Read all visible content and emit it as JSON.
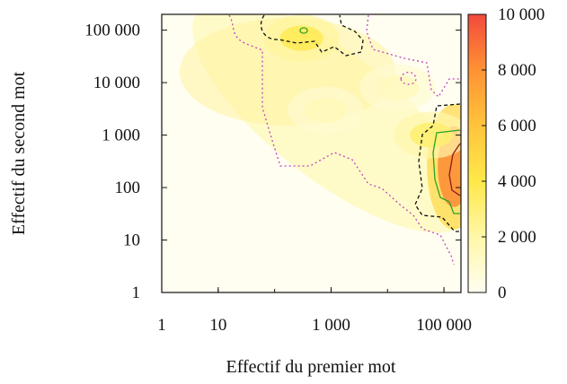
{
  "chart_data": {
    "type": "heatmap",
    "xlabel": "Effectif du premier mot",
    "ylabel": "Effectif du second mot",
    "x_scale": "log",
    "y_scale": "log",
    "xlim": [
      1,
      200000
    ],
    "ylim": [
      1,
      200000
    ],
    "x_ticks": [
      1,
      10,
      1000,
      100000
    ],
    "x_tick_labels": [
      "1",
      "10",
      "1 000",
      "100 000"
    ],
    "y_ticks": [
      1,
      10,
      100,
      1000,
      10000,
      100000
    ],
    "y_tick_labels": [
      "1",
      "10",
      "100",
      "1 000",
      "10 000",
      "100 000"
    ],
    "colorbar": {
      "range": [
        0,
        10000
      ],
      "ticks": [
        0,
        2000,
        4000,
        6000,
        8000,
        10000
      ],
      "tick_labels": [
        "0",
        "2 000",
        "4 000",
        "6 000",
        "8 000",
        "10 000"
      ],
      "colors": [
        "#fffef0",
        "#fff7a8",
        "#ffe84a",
        "#ffc43c",
        "#ff9234",
        "#f24a3c"
      ]
    },
    "hotspots": [
      {
        "x": 150000,
        "y": 250,
        "value": 8200
      },
      {
        "x": 60000,
        "y": 1000,
        "value": 3200
      },
      {
        "x": 300,
        "y": 70000,
        "value": 3800
      },
      {
        "x": 15000,
        "y": 8000,
        "value": 1400
      },
      {
        "x": 800,
        "y": 3000,
        "value": 1500
      }
    ],
    "contours": [
      {
        "level": 1000,
        "color": "#c044c0",
        "dash": "2,3"
      },
      {
        "level": 3000,
        "color": "#111111",
        "dash": "4,3"
      },
      {
        "level": 5000,
        "color": "#2ca02c",
        "dash": ""
      },
      {
        "level": 8000,
        "color": "#8b1a1a",
        "dash": ""
      }
    ]
  }
}
